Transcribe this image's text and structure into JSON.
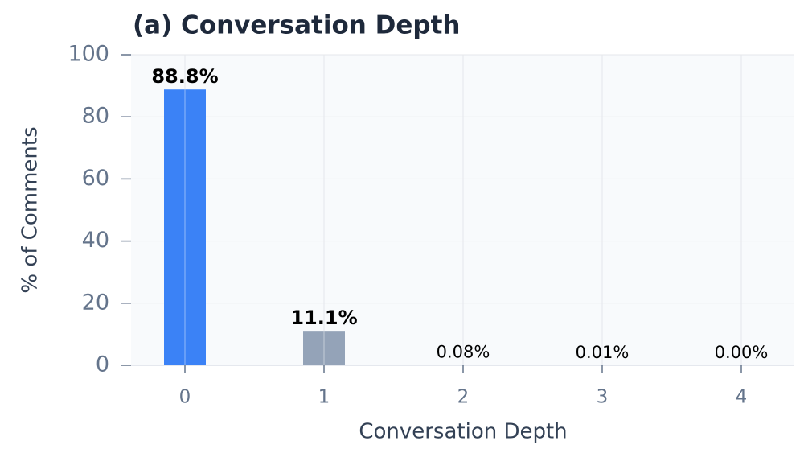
{
  "chart_data": {
    "type": "bar",
    "title": "(a) Conversation Depth",
    "x_label": "Conversation Depth",
    "y_label": "% of Comments",
    "categories": [
      "0",
      "1",
      "2",
      "3",
      "4"
    ],
    "values": [
      88.8,
      11.1,
      0.08,
      0.01,
      0.0
    ],
    "value_labels": [
      "88.8%",
      "11.1%",
      "0.08%",
      "0.01%",
      "0.00%"
    ],
    "colors": [
      "#3b82f6",
      "#94a3b8",
      "#94a3b8",
      "#94a3b8",
      "#94a3b8"
    ],
    "ylim": [
      0,
      100
    ],
    "yticks": [
      0,
      20,
      40,
      60,
      80,
      100
    ],
    "grid": true
  }
}
